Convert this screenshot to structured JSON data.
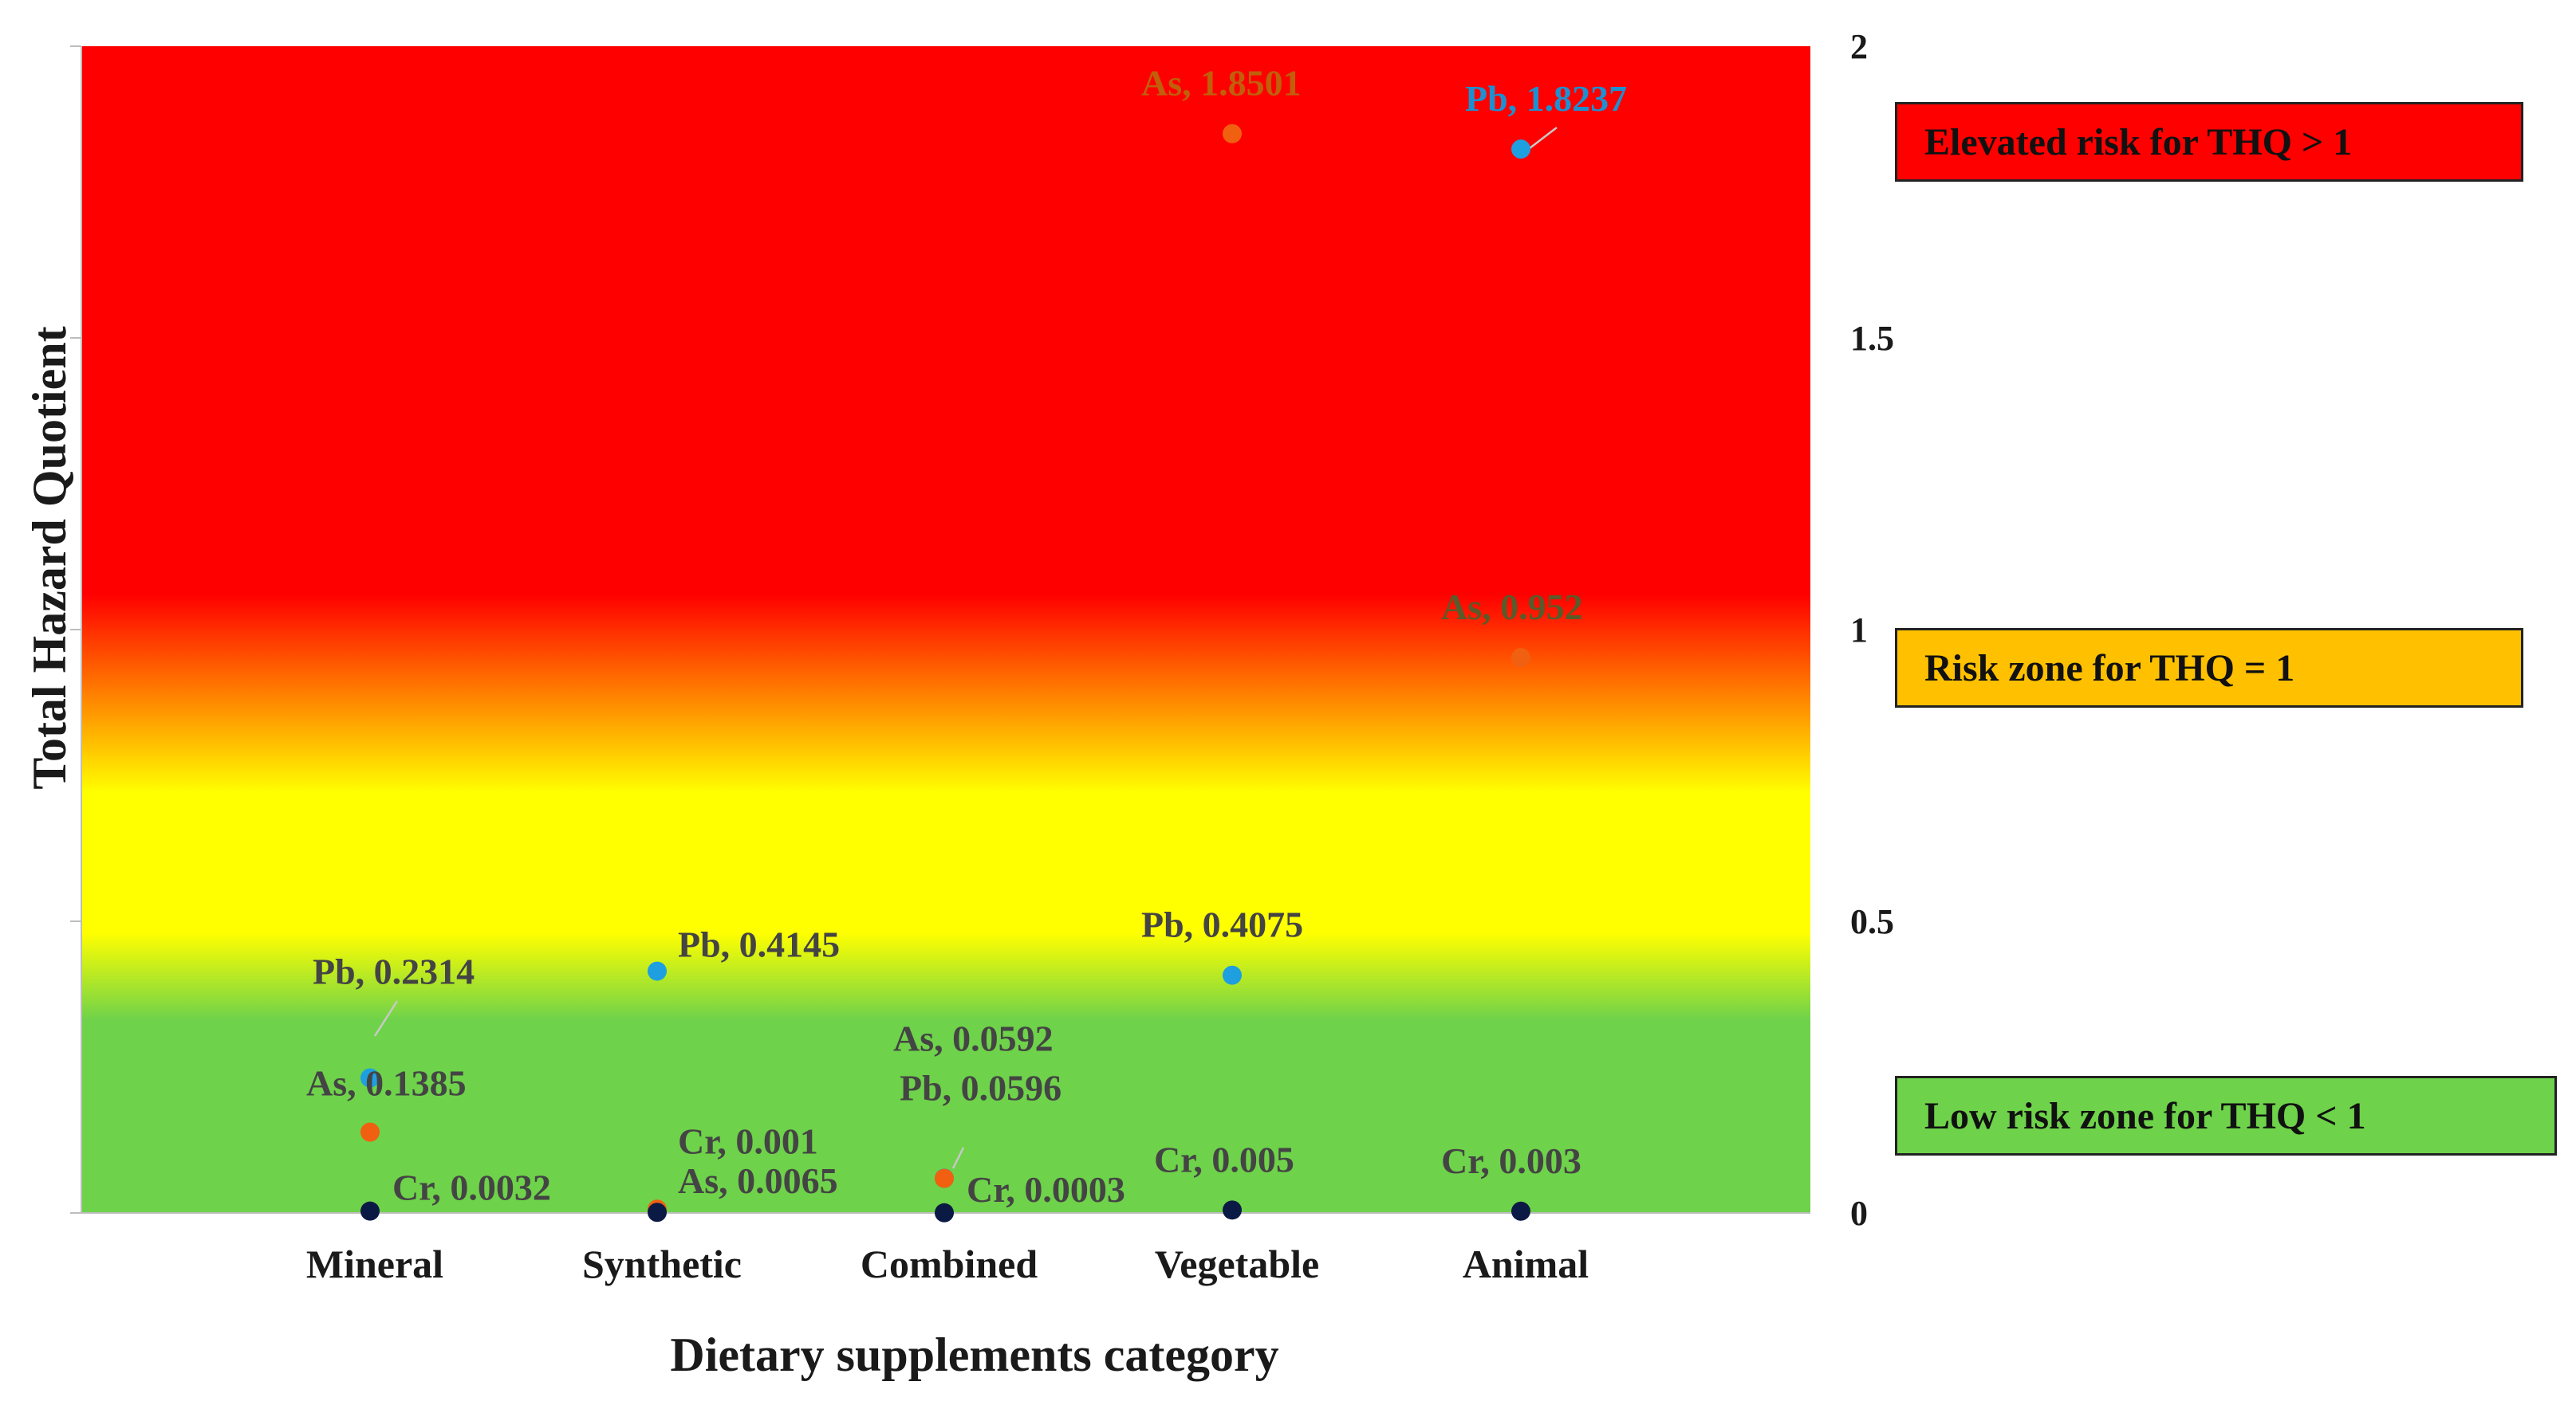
{
  "chart_data": {
    "type": "scatter",
    "xlabel": "Dietary supplements category",
    "ylabel": "Total Hazard Quotient",
    "ylim": [
      0,
      2
    ],
    "yticks": [
      0,
      0.5,
      1,
      1.5,
      2
    ],
    "ytick_labels": [
      "0",
      "0.5",
      "1",
      "1.5",
      "2"
    ],
    "categories": [
      "Mineral",
      "Synthetic",
      "Combined",
      "Vegetable",
      "Animal"
    ],
    "series": [
      {
        "name": "Pb",
        "color": "#1e9fe0",
        "values": [
          0.2314,
          0.4145,
          0.0596,
          0.4075,
          1.8237
        ]
      },
      {
        "name": "As",
        "color": "#f06010",
        "values": [
          0.1385,
          0.0065,
          0.0592,
          1.8501,
          0.952
        ]
      },
      {
        "name": "Cr",
        "color": "#0b1a44",
        "values": [
          0.0032,
          0.001,
          0.0003,
          0.005,
          0.003
        ]
      }
    ],
    "data_labels": [
      {
        "text": "Pb, 0.2314",
        "series": "Pb",
        "category": "Mineral",
        "color": "#444444"
      },
      {
        "text": "As, 0.1385",
        "series": "As",
        "category": "Mineral",
        "color": "#444444"
      },
      {
        "text": "Cr, 0.0032",
        "series": "Cr",
        "category": "Mineral",
        "color": "#444444"
      },
      {
        "text": "Pb, 0.4145",
        "series": "Pb",
        "category": "Synthetic",
        "color": "#444444"
      },
      {
        "text": "Cr, 0.001",
        "series": "Cr",
        "category": "Synthetic",
        "color": "#444444"
      },
      {
        "text": "As, 0.0065",
        "series": "As",
        "category": "Synthetic",
        "color": "#444444"
      },
      {
        "text": "As, 0.0592",
        "series": "As",
        "category": "Combined",
        "color": "#444444"
      },
      {
        "text": "Pb, 0.0596",
        "series": "Pb",
        "category": "Combined",
        "color": "#444444"
      },
      {
        "text": "Cr, 0.0003",
        "series": "Cr",
        "category": "Combined",
        "color": "#444444"
      },
      {
        "text": "As, 1.8501",
        "series": "As",
        "category": "Vegetable",
        "color": "#c0600a"
      },
      {
        "text": "Pb, 0.4075",
        "series": "Pb",
        "category": "Vegetable",
        "color": "#444444"
      },
      {
        "text": "Cr, 0.005",
        "series": "Cr",
        "category": "Vegetable",
        "color": "#444444"
      },
      {
        "text": "Pb, 1.8237",
        "series": "Pb",
        "category": "Animal",
        "color": "#1e90d0"
      },
      {
        "text": "As, 0.952",
        "series": "As",
        "category": "Animal",
        "color": "#5a5a2a"
      },
      {
        "text": "Cr, 0.003",
        "series": "Cr",
        "category": "Animal",
        "color": "#444444"
      }
    ],
    "background_zones": [
      {
        "label": "Elevated risk for THQ > 1",
        "color": "#ff0000"
      },
      {
        "label": "Risk zone for THQ = 1",
        "color": "#ffc000"
      },
      {
        "label": "Low risk zone for THQ < 1",
        "color": "#6ed24a"
      }
    ],
    "background_gradient_stops": [
      {
        "value": 2.0,
        "color": "#ff0000"
      },
      {
        "value": 1.06,
        "color": "#ff0000"
      },
      {
        "value": 0.72,
        "color": "#ffff00"
      },
      {
        "value": 0.48,
        "color": "#ffff00"
      },
      {
        "value": 0.33,
        "color": "#6ed24a"
      },
      {
        "value": 0.0,
        "color": "#6ed24a"
      }
    ]
  }
}
